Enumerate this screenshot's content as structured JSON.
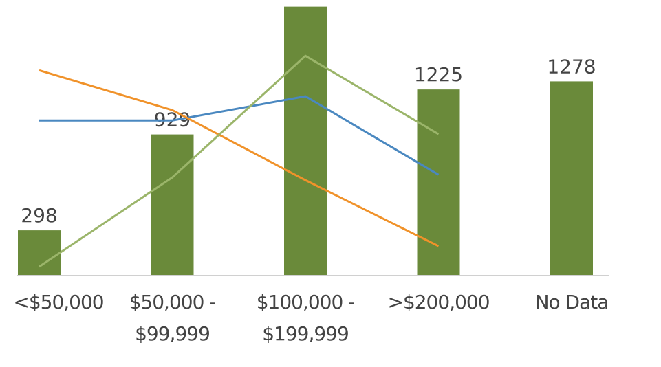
{
  "chart_data": {
    "type": "bar",
    "categories": [
      "<$50,000",
      "$50,000 -\n$99,999",
      "$100,000 -\n$199,999",
      ">$200,000",
      "No Data"
    ],
    "values": [
      298,
      929,
      1770,
      1225,
      1278
    ],
    "value_labels": [
      "298",
      "929",
      null,
      "1225",
      "1278"
    ],
    "color": "#6a8a3a",
    "ylim": [
      0,
      1800
    ],
    "lines": [
      {
        "color": "#4a88c0",
        "values": [
          1021,
          1021,
          1180,
          664,
          null
        ]
      },
      {
        "color": "#f0922a",
        "values": [
          1351,
          1089,
          628,
          194,
          null
        ]
      },
      {
        "color": "#9bb56a",
        "values": [
          59,
          646,
          1446,
          931,
          null
        ]
      }
    ]
  }
}
